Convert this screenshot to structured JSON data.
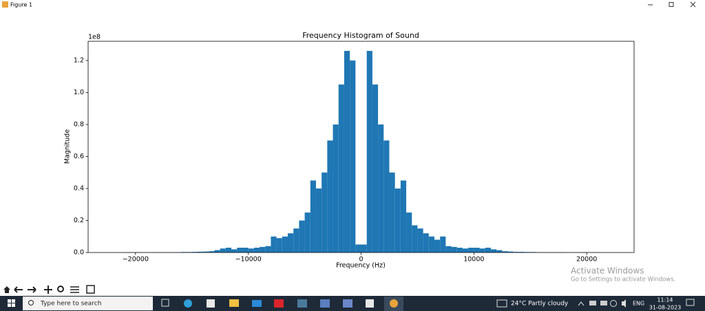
{
  "window": {
    "title": "Figure 1"
  },
  "chart_data": {
    "type": "histogram",
    "title": "Frequency Histogram of Sound",
    "x_label": "Frequency (Hz)",
    "y_label": "Magnitude",
    "y_offset_label": "1e8",
    "color": "#1f77b4",
    "bins": [
      -21000,
      -20500,
      -20000,
      -19500,
      -19000,
      -18500,
      -18000,
      -17500,
      -17000,
      -16500,
      -16000,
      -15500,
      -15000,
      -14500,
      -14000,
      -13500,
      -13000,
      -12500,
      -12000,
      -11500,
      -11000,
      -10500,
      -10000,
      -9500,
      -9000,
      -8500,
      -8000,
      -7500,
      -7000,
      -6500,
      -6000,
      -5500,
      -5000,
      -4500,
      -4000,
      -3500,
      -3000,
      -2500,
      -2000,
      -1500,
      -1000,
      -500,
      0,
      500,
      1000,
      1500,
      2000,
      2500,
      3000,
      3500,
      4000,
      4500,
      5000,
      5500,
      6000,
      6500,
      7000,
      7500,
      8000,
      8500,
      9000,
      9500,
      10000,
      10500,
      11000,
      11500,
      12000,
      12500,
      13000,
      13500,
      14000,
      14500,
      15000,
      15500,
      16000,
      16500,
      17000,
      17500,
      18000,
      18500,
      19000,
      19500,
      20000,
      20500,
      21000
    ],
    "values": [
      0.001,
      0.001,
      0.002,
      0.001,
      0.001,
      0.002,
      0.002,
      0.002,
      0.002,
      0.002,
      0.003,
      0.003,
      0.004,
      0.005,
      0.006,
      0.008,
      0.015,
      0.025,
      0.03,
      0.02,
      0.03,
      0.03,
      0.025,
      0.03,
      0.035,
      0.04,
      0.1,
      0.09,
      0.1,
      0.12,
      0.15,
      0.2,
      0.25,
      0.45,
      0.4,
      0.5,
      0.7,
      0.8,
      1.05,
      1.26,
      1.2,
      0.05,
      0.05,
      1.26,
      1.05,
      0.8,
      0.7,
      0.5,
      0.4,
      0.45,
      0.25,
      0.17,
      0.15,
      0.12,
      0.1,
      0.08,
      0.1,
      0.04,
      0.035,
      0.03,
      0.025,
      0.03,
      0.03,
      0.025,
      0.03,
      0.02,
      0.015,
      0.008,
      0.006,
      0.004,
      0.004,
      0.003,
      0.003,
      0.002,
      0.002,
      0.002,
      0.002,
      0.002,
      0.001,
      0.001,
      0.001,
      0.002,
      0.001,
      0.001
    ],
    "xlim": [
      -24200,
      24200
    ],
    "ylim": [
      0,
      1.32
    ],
    "xticks": [
      {
        "value": -20000,
        "label": "−20000"
      },
      {
        "value": -10000,
        "label": "−10000"
      },
      0,
      10000,
      20000
    ],
    "yticks": [
      {
        "value": 0,
        "label": "0.0"
      },
      0.2,
      0.4,
      0.6,
      0.8,
      {
        "value": 1,
        "label": "1.0"
      },
      1.2
    ]
  },
  "watermark": {
    "title": "Activate Windows",
    "subtitle": "Go to Settings to activate Windows."
  },
  "taskbar": {
    "search": "Type here to search",
    "weather": "24°C  Partly cloudy",
    "language": "ENG",
    "time": "11:14",
    "date": "31-08-2023"
  }
}
